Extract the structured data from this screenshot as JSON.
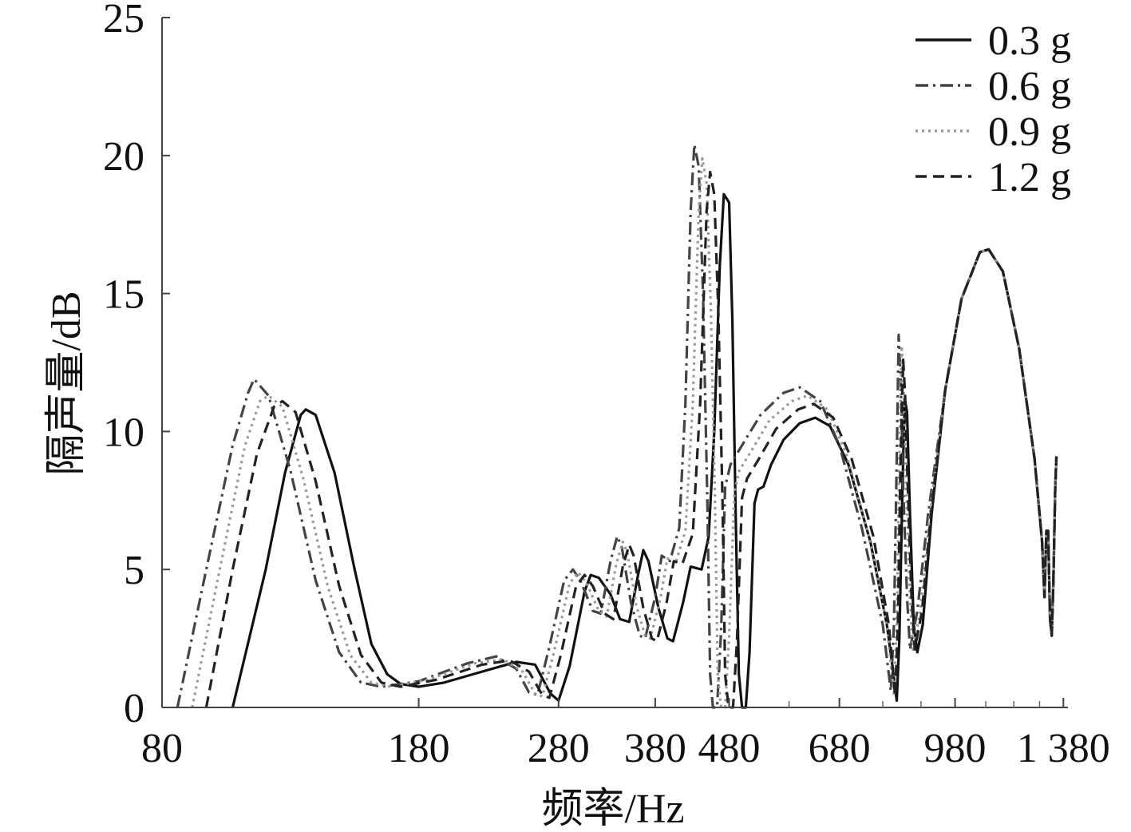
{
  "chart_data": {
    "type": "line",
    "title": "",
    "xlabel": "频率/Hz",
    "ylabel": "隔声量/dB",
    "xscale": "log",
    "xlim": [
      80,
      1400
    ],
    "ylim": [
      0,
      25
    ],
    "x_ticks": [
      80,
      180,
      280,
      380,
      480,
      680,
      980,
      1380
    ],
    "x_tick_labels": [
      "80",
      "180",
      "280",
      "380",
      "480",
      "680",
      "980",
      "1 380"
    ],
    "y_ticks": [
      0,
      5,
      10,
      15,
      20,
      25
    ],
    "y_tick_labels": [
      "0",
      "5",
      "10",
      "15",
      "20",
      "25"
    ],
    "grid": false,
    "legend_position": "top-right",
    "series": [
      {
        "name": "0.3 g",
        "dash": "solid",
        "color": "#111111",
        "points": [
          [
            100,
            0
          ],
          [
            111,
            5
          ],
          [
            118,
            8.5
          ],
          [
            124,
            10.6
          ],
          [
            126,
            10.8
          ],
          [
            130,
            10.6
          ],
          [
            138,
            8.5
          ],
          [
            147,
            5
          ],
          [
            155,
            2.3
          ],
          [
            163,
            1.2
          ],
          [
            170,
            0.85
          ],
          [
            180,
            0.75
          ],
          [
            195,
            0.9
          ],
          [
            220,
            1.3
          ],
          [
            245,
            1.65
          ],
          [
            260,
            1.55
          ],
          [
            273,
            0.5
          ],
          [
            280,
            0.25
          ],
          [
            290,
            1.5
          ],
          [
            304,
            4.2
          ],
          [
            310,
            4.8
          ],
          [
            318,
            4.7
          ],
          [
            330,
            4.1
          ],
          [
            340,
            3.2
          ],
          [
            350,
            3.1
          ],
          [
            360,
            4.8
          ],
          [
            366,
            5.7
          ],
          [
            372,
            5.3
          ],
          [
            384,
            3.6
          ],
          [
            395,
            2.5
          ],
          [
            402,
            2.4
          ],
          [
            415,
            3.8
          ],
          [
            425,
            5.1
          ],
          [
            440,
            5.0
          ],
          [
            450,
            6.2
          ],
          [
            458,
            10
          ],
          [
            466,
            16
          ],
          [
            472,
            18.6
          ],
          [
            480,
            18.3
          ],
          [
            485,
            14
          ],
          [
            490,
            7
          ],
          [
            495,
            1.2
          ],
          [
            500,
            0
          ],
          [
            506,
            0
          ],
          [
            512,
            2
          ],
          [
            520,
            7.4
          ],
          [
            526,
            7.9
          ],
          [
            535,
            8.0
          ],
          [
            548,
            8.8
          ],
          [
            570,
            9.7
          ],
          [
            600,
            10.3
          ],
          [
            630,
            10.5
          ],
          [
            660,
            10.2
          ],
          [
            700,
            8.8
          ],
          [
            750,
            6.0
          ],
          [
            790,
            3.0
          ],
          [
            805,
            1.4
          ],
          [
            815,
            0.25
          ],
          [
            822,
            2.5
          ],
          [
            830,
            8
          ],
          [
            836,
            11.2
          ],
          [
            842,
            10.7
          ],
          [
            850,
            7
          ],
          [
            860,
            3
          ],
          [
            870,
            2.0
          ],
          [
            885,
            3
          ],
          [
            910,
            7
          ],
          [
            950,
            11.5
          ],
          [
            1000,
            14.8
          ],
          [
            1060,
            16.5
          ],
          [
            1090,
            16.6
          ],
          [
            1140,
            15.8
          ],
          [
            1200,
            13
          ],
          [
            1260,
            9
          ],
          [
            1290,
            6
          ],
          [
            1300,
            4.0
          ],
          [
            1308,
            6.4
          ],
          [
            1315,
            6.4
          ],
          [
            1323,
            3.2
          ],
          [
            1330,
            2.6
          ],
          [
            1337,
            4.5
          ],
          [
            1345,
            8.0
          ],
          [
            1350,
            9.1
          ]
        ]
      },
      {
        "name": "0.6 g",
        "dash": "dashdot",
        "color": "#444444",
        "points": [
          [
            84,
            0
          ],
          [
            92,
            5
          ],
          [
            100,
            9.5
          ],
          [
            105,
            11.4
          ],
          [
            107,
            11.9
          ],
          [
            112,
            11.3
          ],
          [
            120,
            8.6
          ],
          [
            130,
            4.6
          ],
          [
            140,
            2.0
          ],
          [
            150,
            0.9
          ],
          [
            160,
            0.75
          ],
          [
            180,
            0.95
          ],
          [
            210,
            1.6
          ],
          [
            230,
            1.85
          ],
          [
            245,
            1.4
          ],
          [
            255,
            0.55
          ],
          [
            262,
            0.45
          ],
          [
            272,
            2.2
          ],
          [
            285,
            4.6
          ],
          [
            293,
            5.0
          ],
          [
            300,
            4.6
          ],
          [
            312,
            3.5
          ],
          [
            320,
            3.4
          ],
          [
            330,
            5.3
          ],
          [
            337,
            6.2
          ],
          [
            342,
            5.8
          ],
          [
            352,
            3.8
          ],
          [
            362,
            2.6
          ],
          [
            368,
            2.5
          ],
          [
            380,
            4.0
          ],
          [
            388,
            5.5
          ],
          [
            398,
            5.3
          ],
          [
            410,
            6.5
          ],
          [
            418,
            11
          ],
          [
            425,
            18
          ],
          [
            430,
            20.4
          ],
          [
            436,
            19.6
          ],
          [
            442,
            15
          ],
          [
            448,
            7.5
          ],
          [
            452,
            1.2
          ],
          [
            456,
            0
          ],
          [
            462,
            0
          ],
          [
            468,
            2.8
          ],
          [
            474,
            8
          ],
          [
            482,
            8.8
          ],
          [
            500,
            9.5
          ],
          [
            530,
            10.6
          ],
          [
            570,
            11.4
          ],
          [
            600,
            11.6
          ],
          [
            640,
            11.1
          ],
          [
            680,
            9.5
          ],
          [
            730,
            6.5
          ],
          [
            780,
            3.0
          ],
          [
            800,
            0.6
          ],
          [
            808,
            3
          ],
          [
            815,
            9
          ],
          [
            820,
            13.5
          ],
          [
            825,
            12.0
          ],
          [
            832,
            8
          ],
          [
            842,
            4
          ],
          [
            850,
            2.1
          ],
          [
            870,
            3.5
          ],
          [
            900,
            7
          ],
          [
            950,
            11.5
          ],
          [
            1000,
            14.8
          ],
          [
            1060,
            16.5
          ],
          [
            1090,
            16.6
          ],
          [
            1140,
            15.8
          ],
          [
            1200,
            13
          ],
          [
            1260,
            9
          ],
          [
            1290,
            6
          ],
          [
            1300,
            4.0
          ],
          [
            1308,
            6.4
          ],
          [
            1315,
            6.4
          ],
          [
            1323,
            3.2
          ],
          [
            1330,
            2.6
          ],
          [
            1337,
            4.5
          ],
          [
            1345,
            8.0
          ],
          [
            1350,
            9.1
          ]
        ]
      },
      {
        "name": "0.9 g",
        "dash": "dotted",
        "color": "#999999",
        "points": [
          [
            88,
            0
          ],
          [
            96,
            5
          ],
          [
            104,
            9.5
          ],
          [
            109,
            11.1
          ],
          [
            112,
            11.3
          ],
          [
            117,
            10.9
          ],
          [
            125,
            8.3
          ],
          [
            135,
            4.4
          ],
          [
            145,
            1.9
          ],
          [
            155,
            0.9
          ],
          [
            165,
            0.75
          ],
          [
            185,
            1.0
          ],
          [
            215,
            1.6
          ],
          [
            235,
            1.75
          ],
          [
            250,
            1.3
          ],
          [
            260,
            0.5
          ],
          [
            266,
            0.4
          ],
          [
            276,
            2.0
          ],
          [
            290,
            4.5
          ],
          [
            298,
            4.9
          ],
          [
            306,
            4.5
          ],
          [
            318,
            3.5
          ],
          [
            326,
            3.3
          ],
          [
            336,
            5.2
          ],
          [
            343,
            6.0
          ],
          [
            348,
            5.6
          ],
          [
            358,
            3.7
          ],
          [
            368,
            2.6
          ],
          [
            374,
            2.5
          ],
          [
            386,
            3.9
          ],
          [
            395,
            5.4
          ],
          [
            405,
            5.2
          ],
          [
            418,
            6.4
          ],
          [
            428,
            11
          ],
          [
            436,
            18
          ],
          [
            441,
            19.9
          ],
          [
            447,
            19.0
          ],
          [
            453,
            14.5
          ],
          [
            459,
            7.5
          ],
          [
            463,
            1.2
          ],
          [
            468,
            0
          ],
          [
            474,
            0
          ],
          [
            480,
            2.6
          ],
          [
            488,
            7.8
          ],
          [
            496,
            8.6
          ],
          [
            515,
            9.3
          ],
          [
            545,
            10.4
          ],
          [
            585,
            11.1
          ],
          [
            615,
            11.3
          ],
          [
            655,
            10.8
          ],
          [
            695,
            9.2
          ],
          [
            745,
            6.3
          ],
          [
            790,
            3.0
          ],
          [
            808,
            0.5
          ],
          [
            815,
            3
          ],
          [
            822,
            9
          ],
          [
            828,
            13.1
          ],
          [
            833,
            11.7
          ],
          [
            840,
            8
          ],
          [
            850,
            4
          ],
          [
            858,
            2.1
          ],
          [
            878,
            3.5
          ],
          [
            905,
            7
          ],
          [
            950,
            11.5
          ],
          [
            1000,
            14.8
          ],
          [
            1060,
            16.5
          ],
          [
            1090,
            16.6
          ],
          [
            1140,
            15.8
          ],
          [
            1200,
            13
          ],
          [
            1260,
            9
          ],
          [
            1290,
            6
          ],
          [
            1300,
            4.0
          ],
          [
            1308,
            6.4
          ],
          [
            1315,
            6.4
          ],
          [
            1323,
            3.2
          ],
          [
            1330,
            2.6
          ],
          [
            1337,
            4.5
          ],
          [
            1345,
            8.0
          ],
          [
            1350,
            9.1
          ]
        ]
      },
      {
        "name": "1.2 g",
        "dash": "dashed",
        "color": "#222222",
        "points": [
          [
            92,
            0
          ],
          [
            100,
            5
          ],
          [
            108,
            9.2
          ],
          [
            114,
            10.9
          ],
          [
            117,
            11.1
          ],
          [
            122,
            10.7
          ],
          [
            130,
            8.2
          ],
          [
            140,
            4.4
          ],
          [
            150,
            1.9
          ],
          [
            160,
            0.9
          ],
          [
            170,
            0.75
          ],
          [
            190,
            1.0
          ],
          [
            220,
            1.55
          ],
          [
            240,
            1.7
          ],
          [
            255,
            1.3
          ],
          [
            266,
            0.45
          ],
          [
            272,
            0.35
          ],
          [
            282,
            1.9
          ],
          [
            296,
            4.4
          ],
          [
            304,
            4.8
          ],
          [
            312,
            4.4
          ],
          [
            324,
            3.4
          ],
          [
            333,
            3.2
          ],
          [
            343,
            5.1
          ],
          [
            350,
            5.9
          ],
          [
            355,
            5.5
          ],
          [
            366,
            3.6
          ],
          [
            376,
            2.5
          ],
          [
            382,
            2.4
          ],
          [
            394,
            3.8
          ],
          [
            403,
            5.3
          ],
          [
            414,
            5.2
          ],
          [
            428,
            6.3
          ],
          [
            438,
            11
          ],
          [
            447,
            18
          ],
          [
            452,
            19.4
          ],
          [
            458,
            18.6
          ],
          [
            464,
            14.2
          ],
          [
            470,
            7.5
          ],
          [
            474,
            1.2
          ],
          [
            479,
            0
          ],
          [
            486,
            0
          ],
          [
            492,
            2.4
          ],
          [
            500,
            7.6
          ],
          [
            508,
            8.3
          ],
          [
            527,
            9.0
          ],
          [
            557,
            10.1
          ],
          [
            597,
            10.8
          ],
          [
            627,
            11.0
          ],
          [
            667,
            10.5
          ],
          [
            707,
            9.0
          ],
          [
            757,
            6.2
          ],
          [
            795,
            3.0
          ],
          [
            811,
            0.4
          ],
          [
            818,
            3
          ],
          [
            825,
            9
          ],
          [
            832,
            12.6
          ],
          [
            837,
            11.3
          ],
          [
            844,
            8
          ],
          [
            854,
            4
          ],
          [
            863,
            2.1
          ],
          [
            883,
            3.5
          ],
          [
            908,
            7
          ],
          [
            950,
            11.5
          ],
          [
            1000,
            14.8
          ],
          [
            1060,
            16.5
          ],
          [
            1090,
            16.6
          ],
          [
            1140,
            15.8
          ],
          [
            1200,
            13
          ],
          [
            1260,
            9
          ],
          [
            1290,
            6
          ],
          [
            1300,
            4.0
          ],
          [
            1308,
            6.4
          ],
          [
            1315,
            6.4
          ],
          [
            1323,
            3.2
          ],
          [
            1330,
            2.6
          ],
          [
            1337,
            4.5
          ],
          [
            1345,
            8.0
          ],
          [
            1350,
            9.1
          ]
        ]
      }
    ]
  }
}
